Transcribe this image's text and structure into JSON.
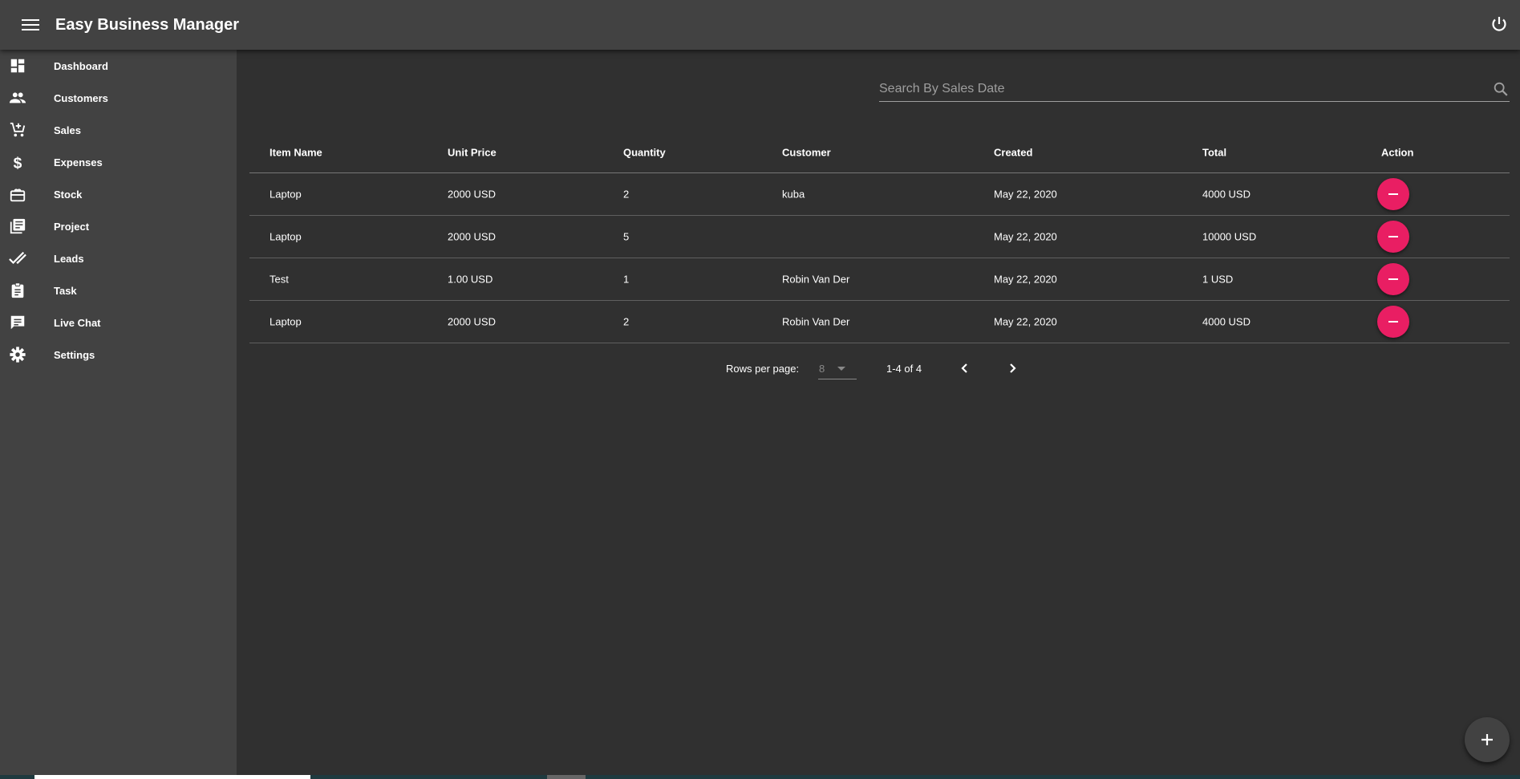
{
  "app": {
    "title": "Easy Business Manager"
  },
  "sidebar": {
    "items": [
      {
        "label": "Dashboard",
        "icon": "dashboard-icon"
      },
      {
        "label": "Customers",
        "icon": "people-icon"
      },
      {
        "label": "Sales",
        "icon": "cart-add-icon"
      },
      {
        "label": "Expenses",
        "icon": "dollar-icon"
      },
      {
        "label": "Stock",
        "icon": "stock-box-icon"
      },
      {
        "label": "Project",
        "icon": "library-books-icon"
      },
      {
        "label": "Leads",
        "icon": "double-check-icon"
      },
      {
        "label": "Task",
        "icon": "clipboard-icon"
      },
      {
        "label": "Live Chat",
        "icon": "chat-icon"
      },
      {
        "label": "Settings",
        "icon": "gear-icon"
      }
    ]
  },
  "search": {
    "placeholder": "Search By Sales Date"
  },
  "table": {
    "headers": [
      "Item Name",
      "Unit Price",
      "Quantity",
      "Customer",
      "Created",
      "Total",
      "Action"
    ],
    "rows": [
      [
        "Laptop",
        "2000 USD",
        "2",
        "kuba",
        "May 22, 2020",
        "4000 USD"
      ],
      [
        "Laptop",
        "2000 USD",
        "5",
        "",
        "May 22, 2020",
        "10000 USD"
      ],
      [
        "Test",
        "1.00 USD",
        "1",
        "Robin Van Der",
        "May 22, 2020",
        "1 USD"
      ],
      [
        "Laptop",
        "2000 USD",
        "2",
        "Robin Van Der",
        "May 22, 2020",
        "4000 USD"
      ]
    ]
  },
  "pagination": {
    "rows_label": "Rows per page:",
    "rows_value": "8",
    "range": "1-4 of 4"
  },
  "colors": {
    "accent": "#e91e63",
    "header": "#424242",
    "background": "#303030"
  }
}
